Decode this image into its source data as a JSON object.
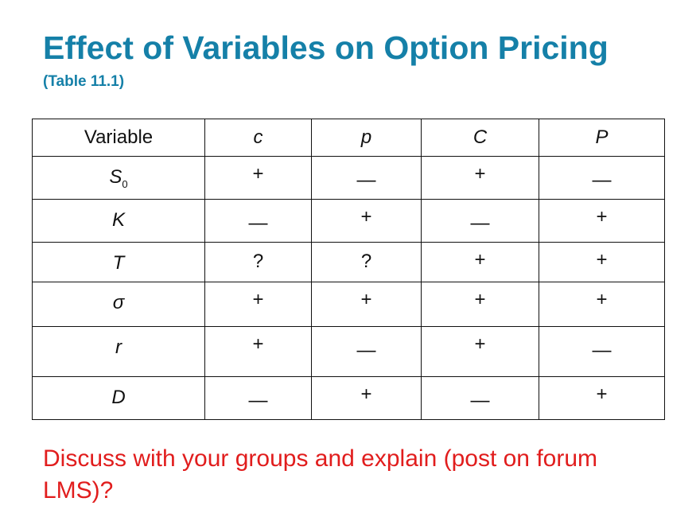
{
  "slide": {
    "title": "Effect of Variables on Option Pricing",
    "subtitle": "(Table 11.1)",
    "prompt": "Discuss with your groups and explain (post on forum LMS)?"
  },
  "table": {
    "headers": [
      "Variable",
      "c",
      "p",
      "C",
      "P"
    ],
    "rows": [
      {
        "var": "S",
        "sub": "0",
        "values": [
          "+",
          "—",
          "+",
          "—"
        ]
      },
      {
        "var": "K",
        "sub": "",
        "values": [
          "—",
          "+",
          "—",
          "+"
        ]
      },
      {
        "var": "T",
        "sub": "",
        "values": [
          "?",
          "?",
          "+",
          "+"
        ]
      },
      {
        "var": "σ",
        "sub": "",
        "values": [
          "+",
          "+",
          "+",
          "+"
        ]
      },
      {
        "var": "r",
        "sub": "",
        "values": [
          "+",
          "—",
          "+",
          "—"
        ]
      },
      {
        "var": "D",
        "sub": "",
        "values": [
          "—",
          "+",
          "—",
          "+"
        ]
      }
    ]
  },
  "colors": {
    "title": "#1580a8",
    "prompt": "#e11d1d",
    "text": "#111111"
  }
}
